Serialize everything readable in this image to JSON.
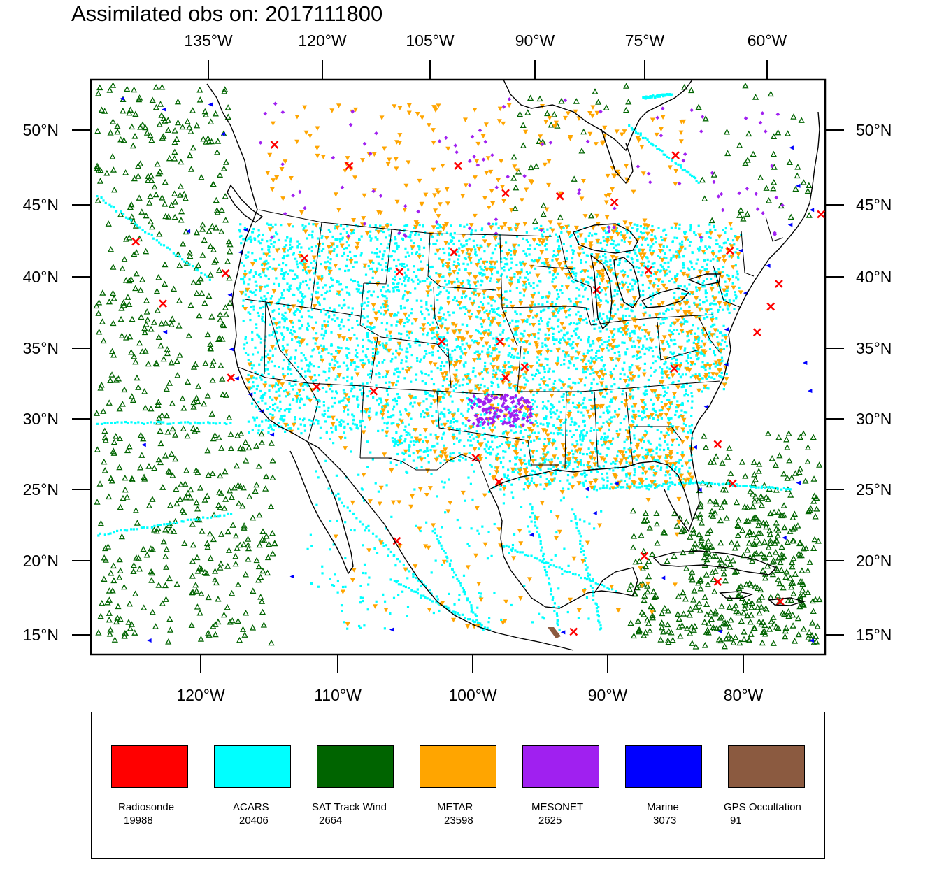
{
  "title": "Assimilated obs on: 2017111800",
  "axes": {
    "top_ticks": [
      "135°W",
      "120°W",
      "105°W",
      "90°W",
      "75°W",
      "60°W"
    ],
    "bottom_ticks": [
      "120°W",
      "110°W",
      "100°W",
      "90°W",
      "80°W"
    ],
    "left_ticks": [
      "50°N",
      "45°N",
      "40°N",
      "35°N",
      "30°N",
      "25°N",
      "20°N",
      "15°N"
    ],
    "right_ticks": [
      "50°N",
      "45°N",
      "40°N",
      "35°N",
      "30°N",
      "25°N",
      "20°N",
      "15°N"
    ],
    "lat_range": [
      14.5,
      52.5
    ],
    "lon_range": [
      -127.5,
      -73.5
    ]
  },
  "legend": [
    {
      "label": "Radiosonde",
      "count": "19988",
      "color": "#ff0000"
    },
    {
      "label": "ACARS",
      "count": "20406",
      "color": "#00ffff"
    },
    {
      "label": "SAT Track Wind",
      "count": "2664",
      "color": "#006400"
    },
    {
      "label": "METAR",
      "count": "23598",
      "color": "#ffa500"
    },
    {
      "label": "MESONET",
      "count": "2625",
      "color": "#a020f0"
    },
    {
      "label": "Marine",
      "count": "3073",
      "color": "#0000ff"
    },
    {
      "label": "GPS Occultation",
      "count": "91",
      "color": "#8b5a40"
    }
  ],
  "chart_data": {
    "type": "scatter",
    "title": "Assimilated obs on: 2017111800",
    "map": "North America, Lambert-like projection",
    "series": [
      {
        "name": "Radiosonde",
        "marker": "x",
        "color": "#ff0000",
        "count": 19988
      },
      {
        "name": "ACARS",
        "marker": "square",
        "color": "#00ffff",
        "count": 20406
      },
      {
        "name": "SAT Track Wind",
        "marker": "triangle-up-open",
        "color": "#006400",
        "count": 2664
      },
      {
        "name": "METAR",
        "marker": "triangle-down",
        "color": "#ffa500",
        "count": 23598
      },
      {
        "name": "MESONET",
        "marker": "diamond",
        "color": "#a020f0",
        "count": 2625
      },
      {
        "name": "Marine",
        "marker": "triangle-left",
        "color": "#0000ff",
        "count": 3073
      },
      {
        "name": "GPS Occultation",
        "marker": "shape",
        "color": "#8b5a40",
        "count": 91
      }
    ],
    "radiosonde_sites": [
      [
        -114.0,
        48.2
      ],
      [
        -108.5,
        46.8
      ],
      [
        -100.5,
        46.8
      ],
      [
        -93.0,
        44.8
      ],
      [
        -84.5,
        47.5
      ],
      [
        -80.5,
        41.2
      ],
      [
        -73.8,
        43.6
      ],
      [
        -89.0,
        44.4
      ],
      [
        -97.0,
        45.0
      ],
      [
        -100.8,
        41.1
      ],
      [
        -104.8,
        39.8
      ],
      [
        -111.8,
        40.7
      ],
      [
        -117.6,
        39.7
      ],
      [
        -122.2,
        37.7
      ],
      [
        -117.2,
        32.8
      ],
      [
        -110.9,
        32.2
      ],
      [
        -106.7,
        31.9
      ],
      [
        -101.7,
        35.2
      ],
      [
        -97.4,
        35.2
      ],
      [
        -95.6,
        33.5
      ],
      [
        -90.3,
        38.6
      ],
      [
        -86.5,
        39.9
      ],
      [
        -84.6,
        33.4
      ],
      [
        -81.4,
        28.4
      ],
      [
        -80.3,
        25.8
      ],
      [
        -78.5,
        35.8
      ],
      [
        -76.9,
        39.0
      ],
      [
        -77.5,
        37.5
      ],
      [
        -99.2,
        27.5
      ],
      [
        -97.5,
        25.9
      ],
      [
        -105.0,
        22.0
      ],
      [
        -92.0,
        16.0
      ],
      [
        -86.8,
        21.0
      ],
      [
        -81.4,
        19.3
      ],
      [
        -76.8,
        18.0
      ],
      [
        -67.8,
        46.6
      ],
      [
        -71.5,
        48.4
      ],
      [
        -63.6,
        44.6
      ],
      [
        -124.2,
        41.8
      ],
      [
        -97.0,
        32.8
      ]
    ]
  }
}
